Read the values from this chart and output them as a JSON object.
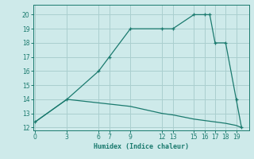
{
  "xlabel": "Humidex (Indice chaleur)",
  "bg_color": "#ceeaea",
  "line_color": "#1a7a6e",
  "grid_color": "#aacfcf",
  "upper_x": [
    0,
    3,
    6,
    7,
    9,
    12,
    13,
    15,
    16,
    16.5,
    17,
    18,
    19,
    19.5
  ],
  "upper_y": [
    12.4,
    14.0,
    16.0,
    17.0,
    19.0,
    19.0,
    19.0,
    20.0,
    20.0,
    20.0,
    18.0,
    18.0,
    14.0,
    12.0
  ],
  "lower_x": [
    0,
    3,
    9,
    12,
    13,
    15,
    16,
    17,
    18,
    19,
    19.5
  ],
  "lower_y": [
    12.4,
    14.0,
    13.5,
    13.0,
    12.9,
    12.6,
    12.5,
    12.4,
    12.3,
    12.15,
    12.0
  ],
  "xlim": [
    -0.2,
    20.2
  ],
  "ylim": [
    11.8,
    20.7
  ],
  "xticks": [
    0,
    3,
    6,
    7,
    9,
    12,
    13,
    15,
    16,
    17,
    18,
    19
  ],
  "yticks": [
    12,
    13,
    14,
    15,
    16,
    17,
    18,
    19,
    20
  ],
  "marker_x": [
    0,
    3,
    6,
    7,
    9,
    12,
    13,
    15,
    16,
    16.5,
    17,
    18,
    19,
    19.5
  ],
  "marker_y": [
    12.4,
    14.0,
    16.0,
    17.0,
    19.0,
    19.0,
    19.0,
    20.0,
    20.0,
    20.0,
    18.0,
    18.0,
    14.0,
    12.0
  ]
}
